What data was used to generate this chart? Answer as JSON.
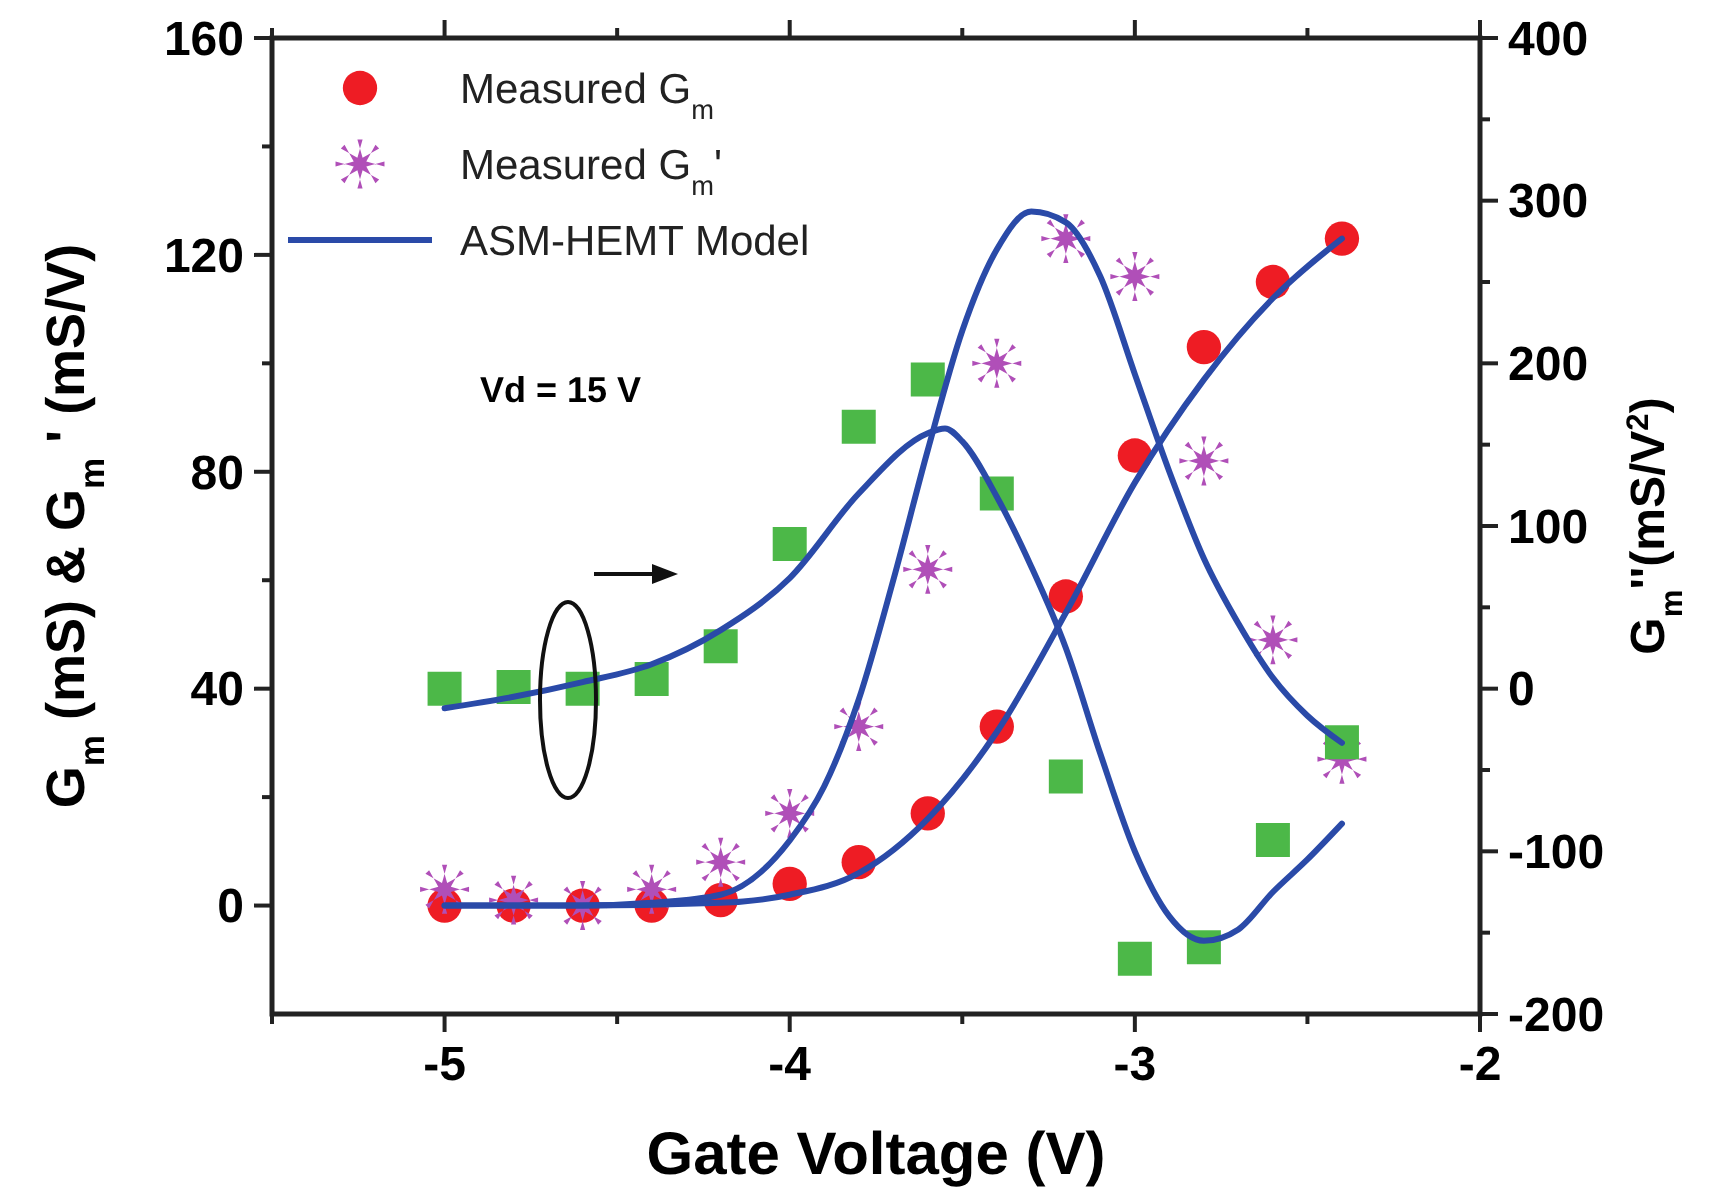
{
  "chart_data": {
    "type": "scatter",
    "xlabel": "Gate Voltage (V)",
    "ylabel": "G$_{m}$ (mS) & G$_{m}$ ' (mS/V)",
    "y2label": "G$_{m}$''(mS/V$^{2}$)",
    "x": [
      -5,
      -4.8,
      -4.6,
      -4.4,
      -4.2,
      -4.0,
      -3.8,
      -3.6,
      -3.4,
      -3.2,
      -3.0,
      -2.8,
      -2.6,
      -2.4
    ],
    "xlim": [
      -5.5,
      -2
    ],
    "xticks": [
      {
        "value": -5.5,
        "label": null
      },
      -5,
      {
        "value": -4.5,
        "label": null
      },
      -4,
      {
        "value": -3.5,
        "label": null
      },
      -3,
      {
        "value": -2.5,
        "label": null
      },
      -2
    ],
    "ylim": [
      -20,
      160
    ],
    "yticks": [
      0,
      {
        "value": 20,
        "label": null
      },
      40,
      {
        "value": 60,
        "label": null
      },
      80,
      {
        "value": 100,
        "label": null
      },
      120,
      {
        "value": 140,
        "label": null
      },
      160
    ],
    "y2lim": [
      -200,
      400
    ],
    "y2ticks": [
      -200,
      {
        "value": -150,
        "label": null
      },
      -100,
      {
        "value": -50,
        "label": null
      },
      0,
      {
        "value": 50,
        "label": null
      },
      100,
      {
        "value": 150,
        "label": null
      },
      200,
      {
        "value": 250,
        "label": null
      },
      300,
      {
        "value": 350,
        "label": null
      },
      400
    ],
    "series": [
      {
        "name": "Measured G$_{m}$",
        "marker": "circle",
        "color": "#ee1c24",
        "values": [
          0,
          0,
          0,
          0,
          1,
          4,
          8,
          17,
          33,
          57,
          83,
          103,
          115,
          123
        ]
      },
      {
        "name": "Measured G$_{m}$'",
        "marker": "cross",
        "color": "#b04fb8",
        "values": [
          3,
          1,
          0,
          3,
          8,
          17,
          33,
          62,
          100,
          123,
          116,
          82,
          49,
          27
        ]
      },
      {
        "marker": "square",
        "axis": "y2",
        "color": "#4cb848",
        "values": [
          0,
          1,
          0,
          6,
          26,
          89,
          161,
          190,
          120,
          -54,
          -166,
          -159,
          -93,
          -33
        ]
      },
      {
        "name": "ASM-HEMT Model",
        "type": "line",
        "marker": "none",
        "line_style": "solid",
        "color": "#2a4aa8",
        "x": [
          -5,
          -4.6,
          -4.2,
          -4.0,
          -3.8,
          -3.6,
          -3.4,
          -3.2,
          -3.0,
          -2.8,
          -2.6,
          -2.4
        ],
        "values": [
          0,
          0,
          0.5,
          2,
          6,
          16,
          32,
          54,
          78,
          97,
          112,
          123
        ]
      },
      {
        "type": "line",
        "marker": "none",
        "line_style": "solid",
        "color": "#2a4aa8",
        "x": [
          -5,
          -4.6,
          -4.4,
          -4.2,
          -4.0,
          -3.9,
          -3.8,
          -3.7,
          -3.6,
          -3.5,
          -3.4,
          -3.3,
          -3.2,
          -3.1,
          -3.0,
          -2.9,
          -2.8,
          -2.7,
          -2.6,
          -2.5,
          -2.4
        ],
        "values": [
          0,
          0,
          0.5,
          2,
          12,
          22,
          38,
          60,
          84,
          106,
          121,
          128,
          126,
          116,
          98,
          80,
          64,
          52,
          42,
          35,
          30
        ]
      },
      {
        "type": "line",
        "marker": "none",
        "line_style": "solid",
        "axis": "y2",
        "color": "#2a4aa8",
        "x": [
          -5,
          -4.8,
          -4.6,
          -4.4,
          -4.2,
          -4.0,
          -3.8,
          -3.6,
          -3.55,
          -3.5,
          -3.4,
          -3.3,
          -3.2,
          -3.1,
          -3.0,
          -2.9,
          -2.8,
          -2.7,
          -2.6,
          -2.5,
          -2.4
        ],
        "values": [
          -12,
          -5,
          4,
          15,
          36,
          68,
          120,
          157,
          160,
          152,
          118,
          75,
          25,
          -40,
          -100,
          -140,
          -155,
          -148,
          -125,
          -105,
          -83
        ]
      }
    ],
    "annotations": [
      "Vd = 15 V"
    ],
    "legend": "top left",
    "grid": false
  }
}
